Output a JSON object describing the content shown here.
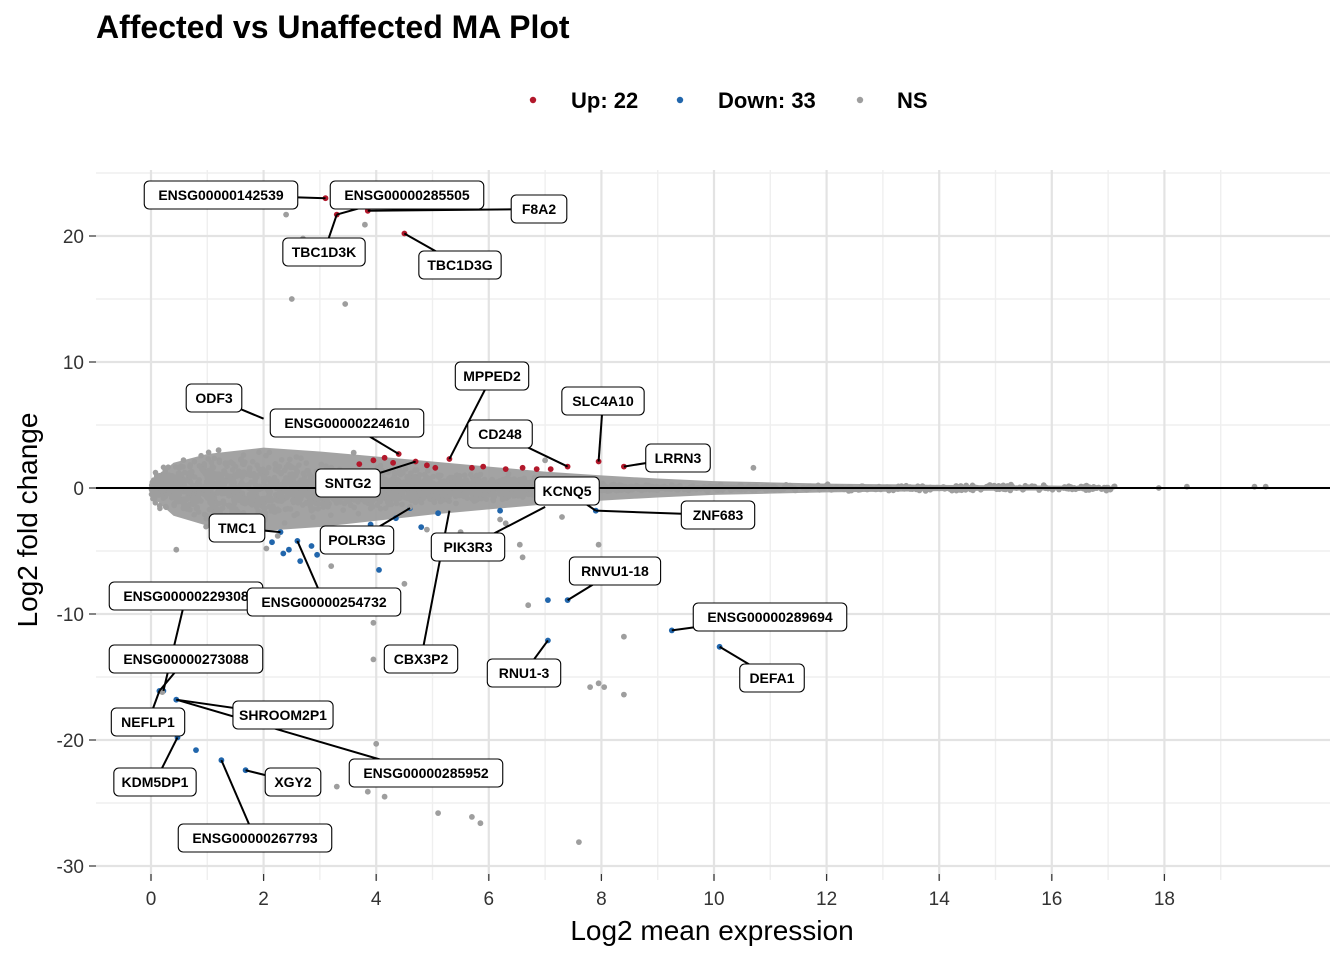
{
  "chart_data": {
    "type": "scatter",
    "title": "Affected vs Unaffected MA Plot",
    "xlabel": "Log2 mean expression",
    "ylabel": "Log2 fold change",
    "xlim": [
      -1,
      20.5
    ],
    "ylim": [
      -31,
      26
    ],
    "x_ticks": [
      0,
      2,
      4,
      6,
      8,
      10,
      12,
      14,
      16,
      18
    ],
    "y_ticks": [
      -30,
      -20,
      -10,
      0,
      10,
      20
    ],
    "x_tick_labels": [
      "0",
      "2",
      "4",
      "6",
      "8",
      "10",
      "12",
      "14",
      "16",
      "18"
    ],
    "y_tick_labels": [
      "-30",
      "-20",
      "-10",
      "0",
      "10",
      "20"
    ],
    "reference_line_y": 0,
    "legend": {
      "position": "top-center",
      "entries": [
        {
          "key": "up",
          "label": "Up: 22",
          "color": "#B2182B"
        },
        {
          "key": "down",
          "label": "Down: 33",
          "color": "#2166AC"
        },
        {
          "key": "ns",
          "label": "NS",
          "color": "#9E9E9E"
        }
      ]
    },
    "series": [
      {
        "name": "Up",
        "color": "#B2182B",
        "points": [
          {
            "x": 3.1,
            "y": 23.0
          },
          {
            "x": 3.3,
            "y": 21.7
          },
          {
            "x": 3.85,
            "y": 22.0
          },
          {
            "x": 4.5,
            "y": 20.2
          },
          {
            "x": 4.7,
            "y": 2.1
          },
          {
            "x": 5.3,
            "y": 2.3
          },
          {
            "x": 7.4,
            "y": 1.7
          },
          {
            "x": 7.95,
            "y": 2.1
          },
          {
            "x": 8.4,
            "y": 1.7
          },
          {
            "x": 4.4,
            "y": 2.7
          },
          {
            "x": 4.15,
            "y": 2.4
          },
          {
            "x": 6.85,
            "y": 1.5
          },
          {
            "x": 5.05,
            "y": 1.6
          },
          {
            "x": 3.7,
            "y": 1.9
          },
          {
            "x": 4.9,
            "y": 1.8
          },
          {
            "x": 6.3,
            "y": 1.5
          },
          {
            "x": 5.7,
            "y": 1.6
          },
          {
            "x": 3.95,
            "y": 2.2
          },
          {
            "x": 4.3,
            "y": 2.0
          },
          {
            "x": 5.9,
            "y": 1.7
          },
          {
            "x": 6.6,
            "y": 1.6
          },
          {
            "x": 7.1,
            "y": 1.5
          }
        ]
      },
      {
        "name": "Down",
        "color": "#2166AC",
        "points": [
          {
            "x": 0.15,
            "y": -16.1
          },
          {
            "x": 0.22,
            "y": -16.1
          },
          {
            "x": 0.45,
            "y": -16.8
          },
          {
            "x": 0.47,
            "y": -19.8
          },
          {
            "x": 0.8,
            "y": -20.8
          },
          {
            "x": 1.25,
            "y": -21.6
          },
          {
            "x": 1.68,
            "y": -22.4
          },
          {
            "x": 2.3,
            "y": -3.5
          },
          {
            "x": 2.35,
            "y": -5.2
          },
          {
            "x": 2.6,
            "y": -4.2
          },
          {
            "x": 2.65,
            "y": -5.8
          },
          {
            "x": 2.15,
            "y": -4.3
          },
          {
            "x": 2.85,
            "y": -4.6
          },
          {
            "x": 2.95,
            "y": -5.3
          },
          {
            "x": 4.05,
            "y": -6.5
          },
          {
            "x": 4.6,
            "y": -1.6
          },
          {
            "x": 7.05,
            "y": -8.9
          },
          {
            "x": 7.05,
            "y": -12.1
          },
          {
            "x": 7.4,
            "y": -8.9
          },
          {
            "x": 7.9,
            "y": -1.8
          },
          {
            "x": 9.25,
            "y": -11.3
          },
          {
            "x": 10.1,
            "y": -12.6
          },
          {
            "x": 3.4,
            "y": -4.8
          },
          {
            "x": 3.7,
            "y": -4.0
          },
          {
            "x": 1.8,
            "y": -3.8
          },
          {
            "x": 2.45,
            "y": -4.9
          },
          {
            "x": 3.15,
            "y": -3.6
          },
          {
            "x": 4.35,
            "y": -2.4
          },
          {
            "x": 5.1,
            "y": -2.0
          },
          {
            "x": 6.2,
            "y": -1.8
          },
          {
            "x": 1.5,
            "y": -3.2
          },
          {
            "x": 3.9,
            "y": -2.9
          },
          {
            "x": 4.8,
            "y": -3.1
          }
        ]
      },
      {
        "name": "NS outliers",
        "color": "#9E9E9E",
        "points": [
          {
            "x": 2.4,
            "y": 21.7
          },
          {
            "x": 2.7,
            "y": 19.8
          },
          {
            "x": 3.8,
            "y": 20.9
          },
          {
            "x": 2.5,
            "y": 15.0
          },
          {
            "x": 3.45,
            "y": 14.6
          },
          {
            "x": 0.45,
            "y": -4.9
          },
          {
            "x": 0.2,
            "y": -16.2
          },
          {
            "x": 2.05,
            "y": -4.8
          },
          {
            "x": 2.25,
            "y": -3.8
          },
          {
            "x": 3.2,
            "y": -6.2
          },
          {
            "x": 3.6,
            "y": -8.6
          },
          {
            "x": 3.95,
            "y": -10.7
          },
          {
            "x": 3.95,
            "y": -13.6
          },
          {
            "x": 4.0,
            "y": -20.3
          },
          {
            "x": 3.85,
            "y": -24.1
          },
          {
            "x": 4.15,
            "y": -24.5
          },
          {
            "x": 4.5,
            "y": -7.6
          },
          {
            "x": 5.1,
            "y": -25.8
          },
          {
            "x": 5.7,
            "y": -26.1
          },
          {
            "x": 5.85,
            "y": -26.6
          },
          {
            "x": 6.55,
            "y": -4.5
          },
          {
            "x": 6.6,
            "y": -5.5
          },
          {
            "x": 6.7,
            "y": -9.3
          },
          {
            "x": 7.6,
            "y": -28.1
          },
          {
            "x": 7.8,
            "y": -15.8
          },
          {
            "x": 7.95,
            "y": -15.5
          },
          {
            "x": 8.05,
            "y": -15.8
          },
          {
            "x": 8.4,
            "y": -11.8
          },
          {
            "x": 8.4,
            "y": -16.4
          },
          {
            "x": 7.95,
            "y": -4.5
          },
          {
            "x": 3.3,
            "y": -23.7
          },
          {
            "x": 4.6,
            "y": -1.5
          },
          {
            "x": 4.9,
            "y": -3.3
          },
          {
            "x": 1.2,
            "y": 3.0
          },
          {
            "x": 3.6,
            "y": 2.8
          },
          {
            "x": 10.7,
            "y": 1.6
          },
          {
            "x": 7.0,
            "y": 2.2
          },
          {
            "x": 6.2,
            "y": -2.5
          },
          {
            "x": 5.5,
            "y": -3.5
          },
          {
            "x": 6.3,
            "y": -2.8
          },
          {
            "x": 7.3,
            "y": -2.3
          },
          {
            "x": 18.4,
            "y": 0.1
          },
          {
            "x": 19.6,
            "y": 0.1
          },
          {
            "x": 19.8,
            "y": 0.1
          },
          {
            "x": 17.9,
            "y": 0.0
          },
          {
            "x": 16.8,
            "y": 0.0
          },
          {
            "x": 15.3,
            "y": 0.1
          }
        ]
      }
    ],
    "ns_cloud": {
      "color": "#9E9E9E",
      "x_range": [
        0,
        17.2
      ],
      "description_ranges": "dense band of non-significant genes around y = 0, widening at low expression"
    },
    "labels": [
      {
        "text": "ENSG00000142539",
        "x": 3.1,
        "y": 23.0
      },
      {
        "text": "ENSG00000285505",
        "x": 3.3,
        "y": 21.7
      },
      {
        "text": "F8A2",
        "x": 3.85,
        "y": 22.0
      },
      {
        "text": "TBC1D3K",
        "x": 3.3,
        "y": 21.7
      },
      {
        "text": "TBC1D3G",
        "x": 4.5,
        "y": 20.2
      },
      {
        "text": "MPPED2",
        "x": 5.3,
        "y": 2.3
      },
      {
        "text": "SLC4A10",
        "x": 7.95,
        "y": 2.1
      },
      {
        "text": "ODF3",
        "x": 2.0,
        "y": 5.5
      },
      {
        "text": "ENSG00000224610",
        "x": 4.4,
        "y": 2.7
      },
      {
        "text": "CD248",
        "x": 7.4,
        "y": 1.7
      },
      {
        "text": "LRRN3",
        "x": 8.4,
        "y": 1.7
      },
      {
        "text": "SNTG2",
        "x": 4.7,
        "y": 2.1
      },
      {
        "text": "KCNQ5",
        "x": 7.9,
        "y": -1.8
      },
      {
        "text": "ZNF683",
        "x": 7.9,
        "y": -1.8
      },
      {
        "text": "TMC1",
        "x": 2.3,
        "y": -3.5
      },
      {
        "text": "POLR3G",
        "x": 4.6,
        "y": -1.6
      },
      {
        "text": "PIK3R3",
        "x": 7.0,
        "y": -1.5
      },
      {
        "text": "RNVU1-18",
        "x": 7.4,
        "y": -8.9
      },
      {
        "text": "ENSG00000229308",
        "x": 0.22,
        "y": -16.1
      },
      {
        "text": "ENSG00000254732",
        "x": 2.6,
        "y": -4.2
      },
      {
        "text": "ENSG00000289694",
        "x": 9.25,
        "y": -11.3
      },
      {
        "text": "ENSG00000273088",
        "x": 0.15,
        "y": -16.1
      },
      {
        "text": "CBX3P2",
        "x": 5.3,
        "y": -1.8
      },
      {
        "text": "RNU1-3",
        "x": 7.05,
        "y": -12.1
      },
      {
        "text": "DEFA1",
        "x": 10.1,
        "y": -12.6
      },
      {
        "text": "NEFLP1",
        "x": 0.15,
        "y": -16.1
      },
      {
        "text": "SHROOM2P1",
        "x": 0.45,
        "y": -16.8
      },
      {
        "text": "ENSG00000285952",
        "x": 0.45,
        "y": -16.8
      },
      {
        "text": "KDM5DP1",
        "x": 0.47,
        "y": -19.8
      },
      {
        "text": "XGY2",
        "x": 1.68,
        "y": -22.4
      },
      {
        "text": "ENSG00000267793",
        "x": 1.25,
        "y": -21.6
      }
    ]
  }
}
